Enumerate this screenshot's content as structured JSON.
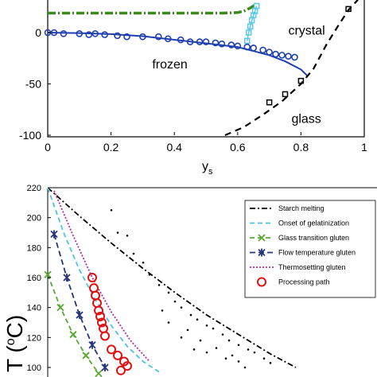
{
  "chart_data": [
    {
      "type": "line",
      "xlabel": "y",
      "xlabel_sub": "s",
      "ylabel": "",
      "xlim": [
        0,
        1
      ],
      "ylim": [
        -100,
        25
      ],
      "xticks": [
        0,
        0.2,
        0.4,
        0.6,
        0.8,
        1
      ],
      "xtick_labels": [
        "0",
        "0.2",
        "0.4",
        "0.6",
        "0.8",
        "1"
      ],
      "yticks": [
        -100,
        -50,
        0
      ],
      "ytick_labels": [
        "-100",
        "-50",
        "0"
      ],
      "grid": false,
      "annotations": [
        {
          "text": "crystal",
          "x": 0.76,
          "y": -2
        },
        {
          "text": "frozen",
          "x": 0.33,
          "y": -35
        },
        {
          "text": "glass",
          "x": 0.77,
          "y": -88
        }
      ],
      "series": [
        {
          "style": "green-dashdot",
          "color": "#3b8a1e",
          "x": [
            0,
            0.1,
            0.2,
            0.3,
            0.4,
            0.5,
            0.55,
            0.6,
            0.62,
            0.64,
            0.66
          ],
          "y": [
            19,
            19,
            19,
            19,
            19,
            19,
            19,
            19.5,
            21,
            24,
            28
          ]
        },
        {
          "style": "cyan-squares",
          "color": "#5bc8e8",
          "x": [
            0.63,
            0.635,
            0.64,
            0.645,
            0.65,
            0.655,
            0.66
          ],
          "y": [
            -8,
            0,
            6,
            12,
            17,
            21,
            26
          ]
        },
        {
          "style": "blue-fit",
          "color": "#1f3fb0",
          "x": [
            0,
            0.1,
            0.2,
            0.3,
            0.4,
            0.5,
            0.6,
            0.65,
            0.7,
            0.75,
            0.8,
            0.82
          ],
          "y": [
            0,
            -0.5,
            -1.5,
            -3.5,
            -7,
            -10.5,
            -14,
            -18,
            -22,
            -28,
            -36,
            -42
          ]
        },
        {
          "style": "blue-circles",
          "color": "#1f3fb0",
          "x": [
            0.0,
            0.02,
            0.05,
            0.1,
            0.13,
            0.15,
            0.18,
            0.22,
            0.25,
            0.3,
            0.35,
            0.38,
            0.42,
            0.45,
            0.48,
            0.5,
            0.53,
            0.55,
            0.58,
            0.6,
            0.63,
            0.65,
            0.68,
            0.7,
            0.72,
            0.74,
            0.76,
            0.78
          ],
          "y": [
            0,
            0,
            -1,
            -1,
            -2,
            -1,
            -2,
            -3,
            -4,
            -4,
            -4,
            -6,
            -7,
            -9,
            -9,
            -9,
            -10,
            -11,
            -12,
            -13,
            -14,
            -15,
            -17,
            -19,
            -21,
            -22,
            -23,
            -24
          ]
        },
        {
          "style": "black-dash",
          "color": "#000000",
          "x": [
            0.56,
            0.62,
            0.68,
            0.74,
            0.8,
            0.84,
            0.88,
            0.92,
            0.95,
            0.98
          ],
          "y": [
            -100,
            -92,
            -80,
            -67,
            -50,
            -35,
            -12,
            8,
            22,
            32
          ]
        },
        {
          "style": "black-squares",
          "color": "#000000",
          "x": [
            0.7,
            0.75,
            0.8,
            0.95
          ],
          "y": [
            -68,
            -60,
            -47,
            23
          ]
        }
      ]
    },
    {
      "type": "line",
      "xlabel": "",
      "ylabel": "T (",
      "ylabel_unit": "o",
      "ylabel_end": "C)",
      "ylim": [
        100,
        220
      ],
      "yticks": [
        100,
        120,
        140,
        160,
        180,
        200,
        220
      ],
      "ytick_labels": [
        "100",
        "120",
        "140",
        "160",
        "180",
        "200",
        "220"
      ],
      "legend_position": "top-right",
      "legend": [
        {
          "label": "Starch melting",
          "color": "#000000",
          "style": "dashdot"
        },
        {
          "label": "Onset of gelatinization",
          "color": "#4cc4e0",
          "style": "dash"
        },
        {
          "label": "Glass transition gluten",
          "color": "#5aa832",
          "style": "dash-x"
        },
        {
          "label": "Flow temperature gluten",
          "color": "#27337a",
          "style": "dash-star"
        },
        {
          "label": "Thermosetting gluten",
          "color": "#b22aa6",
          "style": "dot"
        },
        {
          "label": "Processing path",
          "color": "#e01010",
          "style": "circle"
        }
      ],
      "series": [
        {
          "name": "Starch melting",
          "color": "#000000",
          "x": [
            0,
            0.1,
            0.2,
            0.3,
            0.4,
            0.5,
            0.6,
            0.7,
            0.78
          ],
          "y": [
            220,
            201,
            183,
            166,
            150,
            135,
            122,
            109,
            100
          ]
        },
        {
          "name": "Onset of gelatinization",
          "color": "#4cc4e0",
          "x": [
            0,
            0.05,
            0.1,
            0.15,
            0.2,
            0.25,
            0.3,
            0.35
          ],
          "y": [
            220,
            190,
            165,
            145,
            128,
            114,
            104,
            97
          ]
        },
        {
          "name": "Glass transition gluten",
          "color": "#5aa832",
          "x": [
            0,
            0.04,
            0.08,
            0.12,
            0.16
          ],
          "y": [
            162,
            140,
            122,
            108,
            96
          ]
        },
        {
          "name": "Flow temperature gluten",
          "color": "#27337a",
          "x": [
            0.02,
            0.06,
            0.1,
            0.14,
            0.18
          ],
          "y": [
            189,
            160,
            135,
            115,
            100
          ]
        },
        {
          "name": "Thermosetting gluten",
          "color": "#b22aa6",
          "x": [
            0.02,
            0.08,
            0.14,
            0.2,
            0.26,
            0.32
          ],
          "y": [
            218,
            188,
            160,
            137,
            118,
            104
          ]
        },
        {
          "name": "Processing path",
          "color": "#e01010",
          "x": [
            0.14,
            0.145,
            0.15,
            0.155,
            0.16,
            0.165,
            0.17,
            0.175,
            0.18,
            0.2,
            0.22,
            0.24,
            0.25,
            0.23
          ],
          "y": [
            160,
            153,
            148,
            143,
            138,
            134,
            130,
            126,
            121,
            112,
            108,
            104,
            101,
            98
          ]
        }
      ],
      "scatter_points": {
        "x": [
          0.2,
          0.22,
          0.25,
          0.27,
          0.3,
          0.32,
          0.35,
          0.38,
          0.4,
          0.42,
          0.45,
          0.47,
          0.5,
          0.52,
          0.55,
          0.57,
          0.6,
          0.63,
          0.65,
          0.68,
          0.7,
          0.42,
          0.44,
          0.48,
          0.5,
          0.53,
          0.56,
          0.6,
          0.62,
          0.38,
          0.36,
          0.46,
          0.58
        ],
        "y": [
          205,
          190,
          188,
          176,
          170,
          162,
          155,
          150,
          144,
          140,
          135,
          132,
          128,
          126,
          122,
          118,
          115,
          112,
          110,
          106,
          103,
          120,
          125,
          118,
          110,
          113,
          106,
          104,
          100,
          130,
          138,
          112,
          108
        ]
      }
    }
  ]
}
